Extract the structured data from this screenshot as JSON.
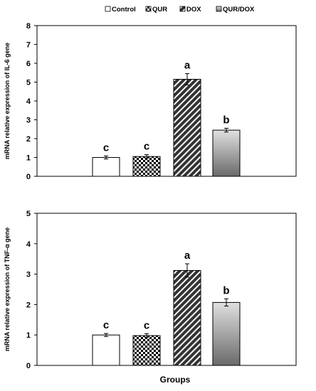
{
  "legend": {
    "items": [
      {
        "label": "Control",
        "pattern": "solid-white"
      },
      {
        "label": "QUR",
        "pattern": "checker"
      },
      {
        "label": "DOX",
        "pattern": "diagonal-hatch"
      },
      {
        "label": "QUR/DOX",
        "pattern": "gray-gradient"
      }
    ],
    "placement": "top-center"
  },
  "xlabel": "Groups",
  "chart_data": [
    {
      "type": "bar",
      "categories": [
        "Control",
        "QUR",
        "DOX",
        "QUR/DOX"
      ],
      "values": [
        1.0,
        1.05,
        5.15,
        2.45
      ],
      "errors": [
        0.08,
        0.1,
        0.3,
        0.1
      ],
      "significance": [
        "c",
        "c",
        "a",
        "b"
      ],
      "ylabel": "mRNA relative expression of IL-6 gene",
      "ylim": [
        0,
        8
      ],
      "yticks": [
        0,
        1,
        2,
        3,
        4,
        5,
        6,
        7,
        8
      ],
      "grid": false
    },
    {
      "type": "bar",
      "categories": [
        "Control",
        "QUR",
        "DOX",
        "QUR/DOX"
      ],
      "values": [
        1.0,
        0.98,
        3.12,
        2.07
      ],
      "errors": [
        0.05,
        0.06,
        0.22,
        0.12
      ],
      "significance": [
        "c",
        "c",
        "a",
        "b"
      ],
      "ylabel": "mRNA relative expression of TNF-α gene",
      "ylim": [
        0,
        5
      ],
      "yticks": [
        0,
        1,
        2,
        3,
        4,
        5
      ],
      "grid": false
    }
  ],
  "colors": {
    "bar_edge": "#000000",
    "hatch_bg": "#333333",
    "hatch_line": "#ffffff",
    "gradient_top": "#e0e0e0",
    "gradient_bottom": "#6a6a6a"
  }
}
